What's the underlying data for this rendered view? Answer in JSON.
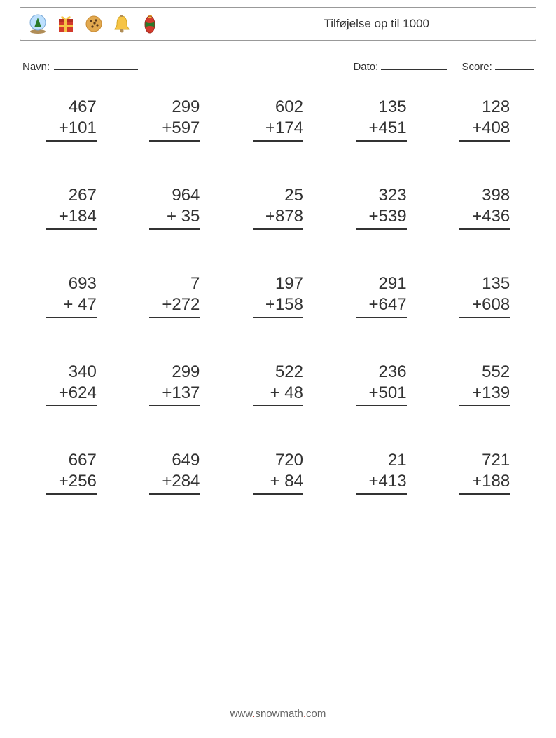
{
  "header": {
    "title": "Tilføjelse op til 1000",
    "icons": [
      "snowglobe-icon",
      "gift-icon",
      "cookie-icon",
      "bell-icon",
      "ornament-icon"
    ]
  },
  "meta": {
    "name_label": "Navn:",
    "date_label": "Dato:",
    "score_label": "Score:"
  },
  "style": {
    "page_bg": "#ffffff",
    "text_color": "#333333",
    "border_color": "#999999",
    "rule_color": "#333333",
    "font_size_title": 17,
    "font_size_meta": 15,
    "font_size_problem": 24,
    "font_size_footer": 15,
    "grid_cols": 5,
    "grid_rows": 5,
    "operator": "+"
  },
  "problems": [
    {
      "a": 467,
      "b": 101
    },
    {
      "a": 299,
      "b": 597
    },
    {
      "a": 602,
      "b": 174
    },
    {
      "a": 135,
      "b": 451
    },
    {
      "a": 128,
      "b": 408
    },
    {
      "a": 267,
      "b": 184
    },
    {
      "a": 964,
      "b": 35
    },
    {
      "a": 25,
      "b": 878
    },
    {
      "a": 323,
      "b": 539
    },
    {
      "a": 398,
      "b": 436
    },
    {
      "a": 693,
      "b": 47
    },
    {
      "a": 7,
      "b": 272
    },
    {
      "a": 197,
      "b": 158
    },
    {
      "a": 291,
      "b": 647
    },
    {
      "a": 135,
      "b": 608
    },
    {
      "a": 340,
      "b": 624
    },
    {
      "a": 299,
      "b": 137
    },
    {
      "a": 522,
      "b": 48
    },
    {
      "a": 236,
      "b": 501
    },
    {
      "a": 552,
      "b": 139
    },
    {
      "a": 667,
      "b": 256
    },
    {
      "a": 649,
      "b": 284
    },
    {
      "a": 720,
      "b": 84
    },
    {
      "a": 21,
      "b": 413
    },
    {
      "a": 721,
      "b": 188
    }
  ],
  "footer": {
    "prefix": "www",
    "mid": "snowmath",
    "suffix": "com"
  },
  "icon_colors": {
    "snowglobe": {
      "base": "#b08d57",
      "globe": "#bde0fe",
      "tree": "#2a7a2a"
    },
    "gift": {
      "box": "#d33a2c",
      "ribbon": "#f6c445"
    },
    "cookie": {
      "fill": "#e2a94f",
      "chip": "#5a3a1a"
    },
    "bell": {
      "fill": "#f6c445",
      "clapper": "#b08d57"
    },
    "ornament": {
      "a": "#d33a2c",
      "b": "#2a7a2a",
      "c": "#f6c445"
    }
  }
}
